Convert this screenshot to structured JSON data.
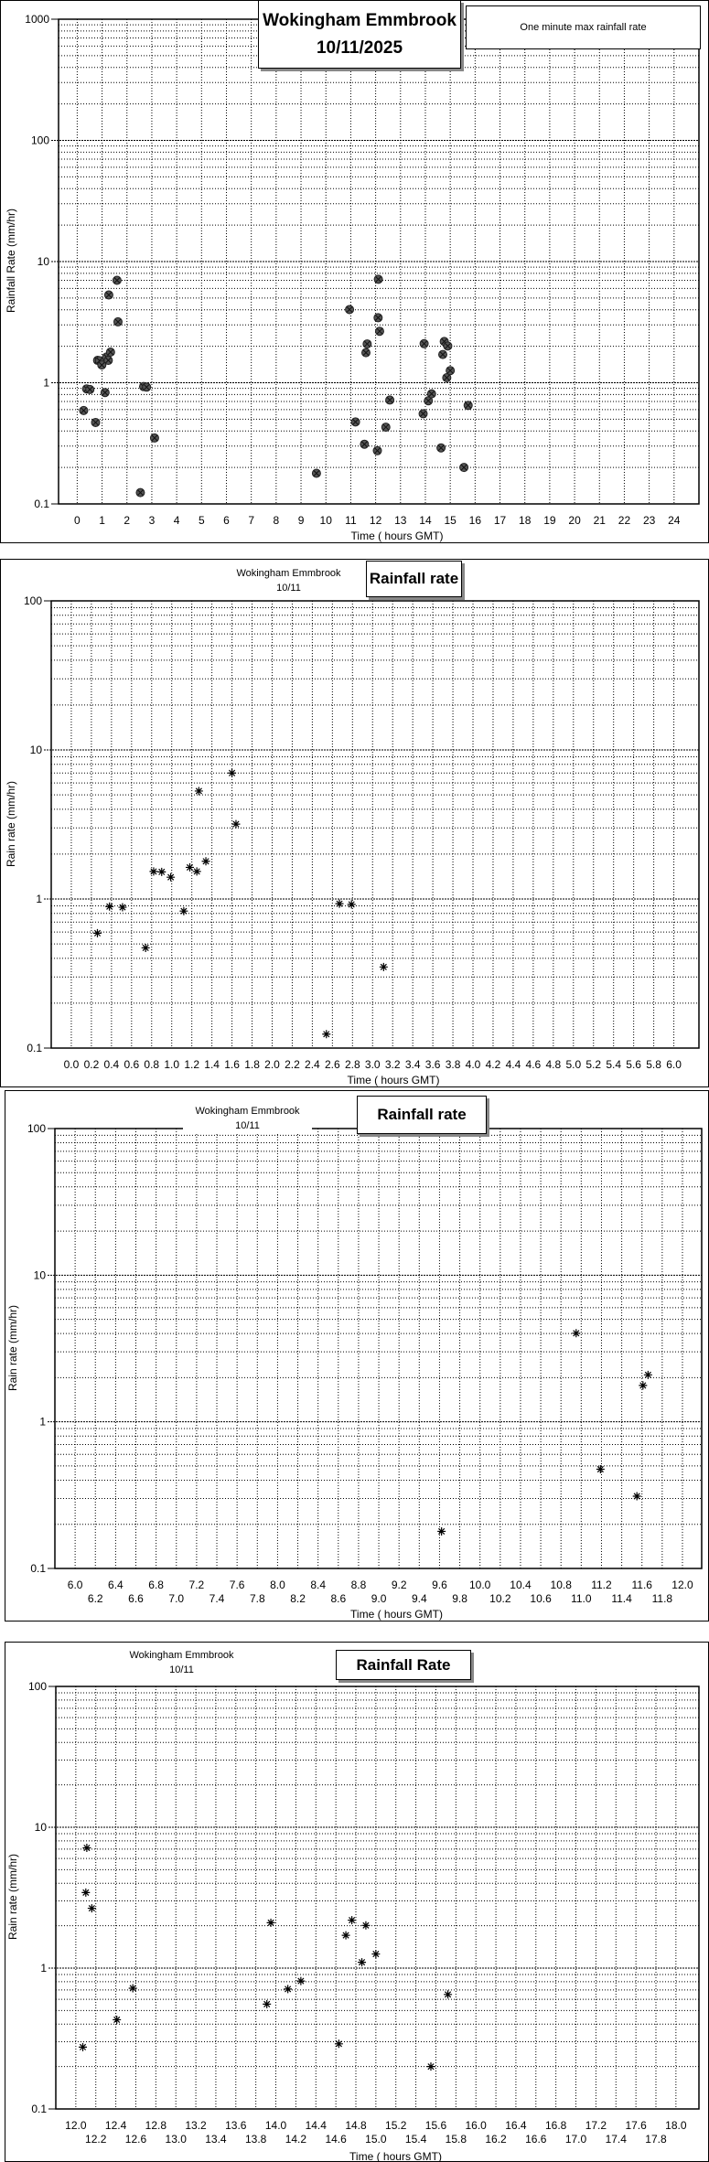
{
  "chart_data": [
    {
      "type": "scatter",
      "title": "Wokingham Emmbrook",
      "subtitle": "10/11/2025",
      "legend": "One minute max rainfall rate",
      "legend_placement": "top-right",
      "xlabel": "Time ( hours GMT)",
      "ylabel": "Rainfall Rate (mm/hr)",
      "yscale": "log",
      "xlim": [
        -0.75,
        25.0
      ],
      "ylim": [
        0.1,
        1000
      ],
      "grid": true,
      "x_ticks": [
        "0",
        "1",
        "2",
        "3",
        "4",
        "5",
        "6",
        "7",
        "8",
        "9",
        "10",
        "11",
        "12",
        "13",
        "14",
        "15",
        "16",
        "17",
        "18",
        "19",
        "20",
        "21",
        "22",
        "23",
        "24"
      ],
      "y_ticks": [
        "0.1",
        "1",
        "10",
        "100",
        "1000"
      ],
      "marker": "filled-circle",
      "points": [
        [
          0.26,
          0.59
        ],
        [
          0.38,
          0.89
        ],
        [
          0.51,
          0.88
        ],
        [
          0.74,
          0.47
        ],
        [
          0.82,
          1.53
        ],
        [
          0.9,
          1.52
        ],
        [
          0.99,
          1.4
        ],
        [
          1.12,
          0.83
        ],
        [
          1.18,
          1.63
        ],
        [
          1.25,
          1.53
        ],
        [
          1.27,
          5.3
        ],
        [
          1.34,
          1.79
        ],
        [
          1.6,
          7.0
        ],
        [
          1.64,
          3.18
        ],
        [
          2.54,
          0.124
        ],
        [
          2.67,
          0.93
        ],
        [
          2.79,
          0.92
        ],
        [
          3.11,
          0.35
        ],
        [
          9.62,
          0.179
        ],
        [
          10.95,
          4.02
        ],
        [
          11.19,
          0.475
        ],
        [
          11.55,
          0.311
        ],
        [
          11.61,
          1.77
        ],
        [
          11.66,
          2.09
        ],
        [
          12.07,
          0.275
        ],
        [
          12.1,
          3.44
        ],
        [
          12.11,
          7.14
        ],
        [
          12.16,
          2.66
        ],
        [
          12.41,
          0.43
        ],
        [
          12.57,
          0.72
        ],
        [
          13.91,
          0.555
        ],
        [
          13.95,
          2.1
        ],
        [
          14.12,
          0.71
        ],
        [
          14.25,
          0.81
        ],
        [
          14.63,
          0.29
        ],
        [
          14.7,
          1.71
        ],
        [
          14.76,
          2.19
        ],
        [
          14.86,
          1.1
        ],
        [
          14.9,
          2.01
        ],
        [
          15.0,
          1.26
        ],
        [
          15.55,
          0.2
        ],
        [
          15.72,
          0.65
        ]
      ]
    },
    {
      "type": "scatter",
      "title": "Rainfall rate",
      "station": "Wokingham Emmbrook",
      "date": "10/11",
      "xlabel": "Time ( hours GMT)",
      "ylabel": "Rain rate (mm/hr)",
      "yscale": "log",
      "xlim": [
        -0.2,
        6.25
      ],
      "ylim": [
        0.1,
        100
      ],
      "grid": true,
      "x_ticks": [
        "0.0",
        "0.2",
        "0.4",
        "0.6",
        "0.8",
        "1.0",
        "1.2",
        "1.4",
        "1.6",
        "1.8",
        "2.0",
        "2.2",
        "2.4",
        "2.6",
        "2.8",
        "3.0",
        "3.2",
        "3.4",
        "3.6",
        "3.8",
        "4.0",
        "4.2",
        "4.4",
        "4.6",
        "4.8",
        "5.0",
        "5.2",
        "5.4",
        "5.6",
        "5.8",
        "6.0"
      ],
      "y_ticks": [
        "0.1",
        "1",
        "10",
        "100"
      ],
      "marker": "asterisk",
      "points": [
        [
          0.26,
          0.59
        ],
        [
          0.38,
          0.89
        ],
        [
          0.51,
          0.88
        ],
        [
          0.74,
          0.47
        ],
        [
          0.82,
          1.53
        ],
        [
          0.9,
          1.52
        ],
        [
          0.99,
          1.4
        ],
        [
          1.12,
          0.83
        ],
        [
          1.18,
          1.63
        ],
        [
          1.25,
          1.53
        ],
        [
          1.27,
          5.3
        ],
        [
          1.34,
          1.79
        ],
        [
          1.6,
          7.0
        ],
        [
          1.64,
          3.18
        ],
        [
          2.54,
          0.124
        ],
        [
          2.67,
          0.93
        ],
        [
          2.79,
          0.92
        ],
        [
          3.11,
          0.35
        ]
      ]
    },
    {
      "type": "scatter",
      "title": "Rainfall rate",
      "station": "Wokingham Emmbrook",
      "date": "10/11",
      "xlabel": "Time ( hours GMT)",
      "ylabel": "Rain rate (mm/hr)",
      "yscale": "log",
      "xlim": [
        5.8,
        12.19
      ],
      "ylim": [
        0.1,
        100
      ],
      "grid": true,
      "x_ticks": [
        "6.0",
        "6.2",
        "6.4",
        "6.6",
        "6.8",
        "7.0",
        "7.2",
        "7.4",
        "7.6",
        "7.8",
        "8.0",
        "8.2",
        "8.4",
        "8.6",
        "8.8",
        "9.0",
        "9.2",
        "9.4",
        "9.6",
        "9.8",
        "10.0",
        "10.2",
        "10.4",
        "10.6",
        "10.8",
        "11.0",
        "11.2",
        "11.4",
        "11.6",
        "11.8",
        "12.0"
      ],
      "y_ticks": [
        "0.1",
        "1",
        "10",
        "100"
      ],
      "marker": "asterisk",
      "points": [
        [
          9.62,
          0.179
        ],
        [
          10.95,
          4.02
        ],
        [
          11.19,
          0.475
        ],
        [
          11.55,
          0.311
        ],
        [
          11.61,
          1.77
        ],
        [
          11.66,
          2.09
        ]
      ]
    },
    {
      "type": "scatter",
      "title": "Rainfall Rate",
      "station": "Wokingham Emmbrook",
      "date": "10/11",
      "xlabel": "Time ( hours GMT)",
      "ylabel": "Rain rate (mm/hr)",
      "yscale": "log",
      "xlim": [
        11.8,
        18.23
      ],
      "ylim": [
        0.1,
        100
      ],
      "grid": true,
      "x_ticks": [
        "12.0",
        "12.2",
        "12.4",
        "12.6",
        "12.8",
        "13.0",
        "13.2",
        "13.4",
        "13.6",
        "13.8",
        "14.0",
        "14.2",
        "14.4",
        "14.6",
        "14.8",
        "15.0",
        "15.2",
        "15.4",
        "15.6",
        "15.8",
        "16.0",
        "16.2",
        "16.4",
        "16.6",
        "16.8",
        "17.0",
        "17.2",
        "17.4",
        "17.6",
        "17.8",
        "18.0"
      ],
      "y_ticks": [
        "0.1",
        "1",
        "10",
        "100"
      ],
      "marker": "asterisk",
      "points": [
        [
          12.07,
          0.275
        ],
        [
          12.1,
          3.44
        ],
        [
          12.11,
          7.14
        ],
        [
          12.16,
          2.66
        ],
        [
          12.41,
          0.43
        ],
        [
          12.57,
          0.72
        ],
        [
          13.91,
          0.555
        ],
        [
          13.95,
          2.1
        ],
        [
          14.12,
          0.71
        ],
        [
          14.25,
          0.81
        ],
        [
          14.63,
          0.29
        ],
        [
          14.7,
          1.71
        ],
        [
          14.76,
          2.19
        ],
        [
          14.86,
          1.1
        ],
        [
          14.9,
          2.01
        ],
        [
          15.0,
          1.26
        ],
        [
          15.55,
          0.2
        ],
        [
          15.72,
          0.65
        ]
      ]
    }
  ]
}
